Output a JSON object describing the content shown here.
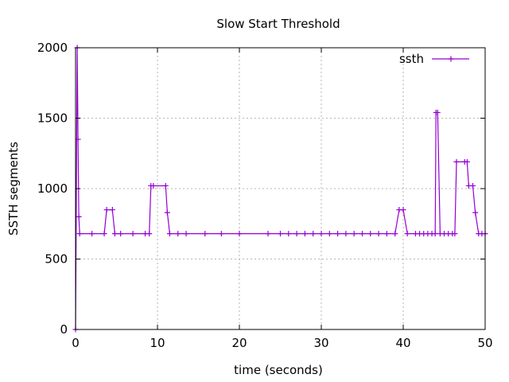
{
  "chart_data": {
    "type": "line",
    "title": "Slow Start Threshold",
    "xlabel": "time (seconds)",
    "ylabel": "SSTH segments",
    "xlim": [
      0,
      50
    ],
    "ylim": [
      0,
      2000
    ],
    "xticks": [
      0,
      10,
      20,
      30,
      40,
      50
    ],
    "yticks": [
      0,
      500,
      1000,
      1500,
      2000
    ],
    "grid": true,
    "legend": "top-right",
    "series": [
      {
        "name": "ssth",
        "color": "#9400d3",
        "marker": "plus",
        "x": [
          0,
          0.2,
          0.3,
          0.4,
          0.5,
          2.0,
          3.5,
          3.8,
          4.5,
          4.8,
          5.5,
          7.0,
          8.5,
          9.0,
          9.2,
          9.5,
          11.0,
          11.2,
          11.5,
          12.5,
          13.5,
          15.8,
          17.8,
          20.0,
          23.5,
          25.0,
          26.0,
          27.0,
          28.0,
          29.0,
          30.0,
          31.0,
          32.0,
          33.0,
          34.0,
          35.0,
          36.0,
          37.0,
          38.0,
          39.0,
          39.5,
          40.0,
          40.5,
          41.5,
          42.0,
          42.5,
          43.0,
          43.5,
          43.9,
          44.0,
          44.2,
          44.5,
          45.0,
          45.5,
          46.0,
          46.3,
          46.5,
          47.5,
          47.8,
          48.0,
          48.5,
          48.8,
          49.2,
          49.6,
          50.0
        ],
        "y": [
          0,
          2000,
          1350,
          800,
          680,
          680,
          680,
          850,
          850,
          680,
          680,
          680,
          680,
          680,
          1020,
          1020,
          1020,
          830,
          680,
          680,
          680,
          680,
          680,
          680,
          680,
          680,
          680,
          680,
          680,
          680,
          680,
          680,
          680,
          680,
          680,
          680,
          680,
          680,
          680,
          680,
          850,
          850,
          680,
          680,
          680,
          680,
          680,
          680,
          680,
          1540,
          1540,
          680,
          680,
          680,
          680,
          680,
          1190,
          1190,
          1190,
          1020,
          1020,
          830,
          680,
          680,
          680
        ]
      }
    ]
  }
}
